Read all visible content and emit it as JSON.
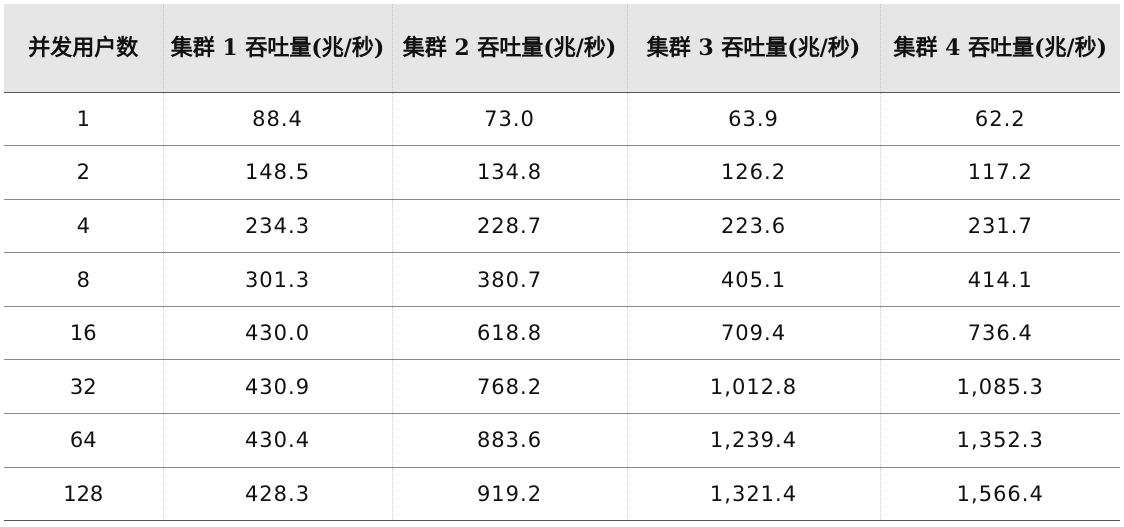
{
  "table": {
    "headers": [
      "并发用户数",
      "集群 1 吞吐量(兆/秒)",
      "集群 2 吞吐量(兆/秒)",
      "集群 3 吞吐量(兆/秒)",
      "集群 4 吞吐量(兆/秒)"
    ],
    "rows": [
      [
        "1",
        "88.4",
        "73.0",
        "63.9",
        "62.2"
      ],
      [
        "2",
        "148.5",
        "134.8",
        "126.2",
        "117.2"
      ],
      [
        "4",
        "234.3",
        "228.7",
        "223.6",
        "231.7"
      ],
      [
        "8",
        "301.3",
        "380.7",
        "405.1",
        "414.1"
      ],
      [
        "16",
        "430.0",
        "618.8",
        "709.4",
        "736.4"
      ],
      [
        "32",
        "430.9",
        "768.2",
        "1,012.8",
        "1,085.3"
      ],
      [
        "64",
        "430.4",
        "883.6",
        "1,239.4",
        "1,352.3"
      ],
      [
        "128",
        "428.3",
        "919.2",
        "1,321.4",
        "1,566.4"
      ]
    ]
  },
  "chart_data": {
    "type": "table",
    "columns": [
      "并发用户数",
      "集群 1 吞吐量(兆/秒)",
      "集群 2 吞吐量(兆/秒)",
      "集群 3 吞吐量(兆/秒)",
      "集群 4 吞吐量(兆/秒)"
    ],
    "x": [
      1,
      2,
      4,
      8,
      16,
      32,
      64,
      128
    ],
    "series": [
      {
        "name": "集群 1 吞吐量(兆/秒)",
        "values": [
          88.4,
          148.5,
          234.3,
          301.3,
          430.0,
          430.9,
          430.4,
          428.3
        ]
      },
      {
        "name": "集群 2 吞吐量(兆/秒)",
        "values": [
          73.0,
          134.8,
          228.7,
          380.7,
          618.8,
          768.2,
          883.6,
          919.2
        ]
      },
      {
        "name": "集群 3 吞吐量(兆/秒)",
        "values": [
          63.9,
          126.2,
          223.6,
          405.1,
          709.4,
          1012.8,
          1239.4,
          1321.4
        ]
      },
      {
        "name": "集群 4 吞吐量(兆/秒)",
        "values": [
          62.2,
          117.2,
          231.7,
          414.1,
          736.4,
          1085.3,
          1352.3,
          1566.4
        ]
      }
    ]
  }
}
